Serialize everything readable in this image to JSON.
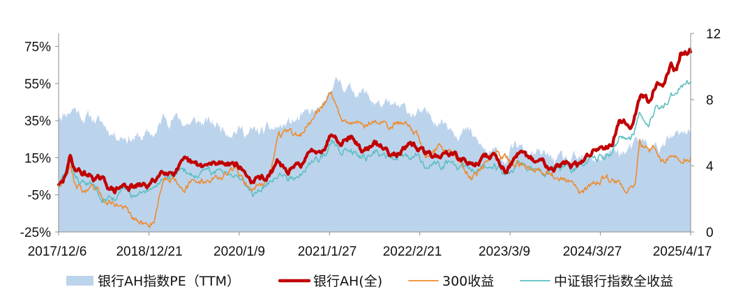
{
  "chart_data": {
    "type": "area",
    "title": "",
    "xlabel": "",
    "ylabel_left": "",
    "ylabel_right": "",
    "x_tick_labels": [
      "2017/12/6",
      "2018/12/21",
      "2020/1/9",
      "2021/1/27",
      "2022/2/21",
      "2023/3/9",
      "2024/3/27",
      "2025/4/17"
    ],
    "x_range": [
      "2017-12-06",
      "2025-05-15"
    ],
    "y_left": {
      "ticks": [
        -25,
        -5,
        15,
        35,
        55,
        75
      ],
      "tick_labels": [
        "-25%",
        "-5%",
        "15%",
        "35%",
        "55%",
        "75%"
      ],
      "lim": [
        -25,
        82
      ],
      "unit": "%"
    },
    "y_right": {
      "ticks": [
        0,
        4,
        8,
        12
      ],
      "tick_labels": [
        "0",
        "4",
        "8",
        "12"
      ],
      "lim": [
        0,
        12
      ]
    },
    "grid": false,
    "legend_position": "bottom",
    "series": [
      {
        "name": "银行AH指数PE（TTM）",
        "axis": "right",
        "kind": "area",
        "color": "#bcd3ec",
        "points": [
          [
            "2017-12-06",
            7.1
          ],
          [
            "2018-01-10",
            7.3
          ],
          [
            "2018-02-10",
            7.6
          ],
          [
            "2018-03-15",
            7.1
          ],
          [
            "2018-05-01",
            6.9
          ],
          [
            "2018-06-15",
            6.5
          ],
          [
            "2018-08-01",
            6.0
          ],
          [
            "2018-09-15",
            5.9
          ],
          [
            "2018-11-15",
            5.7
          ],
          [
            "2018-12-21",
            5.8
          ],
          [
            "2019-02-01",
            6.0
          ],
          [
            "2019-03-01",
            6.9
          ],
          [
            "2019-04-15",
            7.0
          ],
          [
            "2019-06-01",
            6.6
          ],
          [
            "2019-08-01",
            6.6
          ],
          [
            "2019-10-01",
            6.5
          ],
          [
            "2019-12-01",
            6.3
          ],
          [
            "2020-01-09",
            6.3
          ],
          [
            "2020-03-01",
            6.0
          ],
          [
            "2020-05-01",
            6.0
          ],
          [
            "2020-06-01",
            6.1
          ],
          [
            "2020-08-01",
            6.4
          ],
          [
            "2020-09-01",
            6.6
          ],
          [
            "2020-11-01",
            6.9
          ],
          [
            "2020-12-15",
            7.2
          ],
          [
            "2021-01-27",
            7.4
          ],
          [
            "2021-02-20",
            8.9
          ],
          [
            "2021-04-01",
            9.1
          ],
          [
            "2021-05-15",
            8.6
          ],
          [
            "2021-07-01",
            8.5
          ],
          [
            "2021-08-15",
            8.0
          ],
          [
            "2021-10-01",
            7.6
          ],
          [
            "2021-12-01",
            7.4
          ],
          [
            "2022-02-21",
            7.2
          ],
          [
            "2022-04-01",
            6.9
          ],
          [
            "2022-05-01",
            7.0
          ],
          [
            "2022-06-15",
            6.8
          ],
          [
            "2022-08-01",
            6.4
          ],
          [
            "2022-10-01",
            6.0
          ],
          [
            "2022-11-01",
            5.5
          ],
          [
            "2022-12-01",
            5.0
          ],
          [
            "2023-01-01",
            4.7
          ],
          [
            "2023-03-09",
            4.5
          ],
          [
            "2023-05-01",
            5.2
          ],
          [
            "2023-06-01",
            4.8
          ],
          [
            "2023-08-01",
            4.6
          ],
          [
            "2023-10-01",
            4.4
          ],
          [
            "2023-12-01",
            4.2
          ],
          [
            "2024-01-15",
            4.2
          ],
          [
            "2024-03-27",
            4.4
          ],
          [
            "2024-05-01",
            4.6
          ],
          [
            "2024-07-01",
            4.8
          ],
          [
            "2024-09-01",
            4.9
          ],
          [
            "2024-10-15",
            5.4
          ],
          [
            "2024-12-01",
            5.1
          ],
          [
            "2025-01-15",
            5.2
          ],
          [
            "2025-03-01",
            5.7
          ],
          [
            "2025-04-17",
            5.7
          ],
          [
            "2025-05-15",
            6.2
          ]
        ]
      },
      {
        "name": "银行AH(全)",
        "axis": "left",
        "kind": "line",
        "color": "#c00000",
        "points": [
          [
            "2017-12-06",
            0.5
          ],
          [
            "2017-12-25",
            1
          ],
          [
            "2018-01-10",
            8
          ],
          [
            "2018-01-25",
            15
          ],
          [
            "2018-02-10",
            10
          ],
          [
            "2018-03-15",
            7
          ],
          [
            "2018-05-01",
            5
          ],
          [
            "2018-06-15",
            2
          ],
          [
            "2018-08-01",
            -3
          ],
          [
            "2018-09-15",
            0
          ],
          [
            "2018-10-30",
            -1
          ],
          [
            "2018-12-21",
            0
          ],
          [
            "2019-01-20",
            2
          ],
          [
            "2019-03-01",
            9
          ],
          [
            "2019-04-15",
            8
          ],
          [
            "2019-06-01",
            12
          ],
          [
            "2019-08-01",
            10
          ],
          [
            "2019-10-01",
            11
          ],
          [
            "2019-12-01",
            13
          ],
          [
            "2020-01-09",
            12
          ],
          [
            "2020-03-20",
            2
          ],
          [
            "2020-05-01",
            4
          ],
          [
            "2020-06-01",
            5
          ],
          [
            "2020-07-10",
            13
          ],
          [
            "2020-08-15",
            7
          ],
          [
            "2020-10-01",
            10
          ],
          [
            "2020-12-01",
            18
          ],
          [
            "2021-01-27",
            22
          ],
          [
            "2021-02-20",
            29
          ],
          [
            "2021-04-01",
            25
          ],
          [
            "2021-05-15",
            27
          ],
          [
            "2021-07-01",
            19
          ],
          [
            "2021-09-01",
            22
          ],
          [
            "2021-11-01",
            18
          ],
          [
            "2022-01-10",
            20
          ],
          [
            "2022-02-21",
            21
          ],
          [
            "2022-04-01",
            17
          ],
          [
            "2022-06-01",
            16
          ],
          [
            "2022-07-15",
            18
          ],
          [
            "2022-09-01",
            14
          ],
          [
            "2022-10-15",
            11
          ],
          [
            "2022-12-01",
            14
          ],
          [
            "2023-01-15",
            17
          ],
          [
            "2023-03-09",
            9
          ],
          [
            "2023-05-01",
            16
          ],
          [
            "2023-06-15",
            14
          ],
          [
            "2023-08-01",
            13
          ],
          [
            "2023-10-01",
            11
          ],
          [
            "2023-12-01",
            12
          ],
          [
            "2024-01-20",
            10
          ],
          [
            "2024-03-27",
            20
          ],
          [
            "2024-05-01",
            21
          ],
          [
            "2024-06-15",
            25
          ],
          [
            "2024-07-15",
            36
          ],
          [
            "2024-09-01",
            32
          ],
          [
            "2024-10-10",
            48
          ],
          [
            "2024-11-15",
            46
          ],
          [
            "2024-12-15",
            56
          ],
          [
            "2025-01-15",
            56
          ],
          [
            "2025-02-20",
            64
          ],
          [
            "2025-03-15",
            62
          ],
          [
            "2025-04-01",
            71
          ],
          [
            "2025-04-17",
            70
          ],
          [
            "2025-05-15",
            72
          ]
        ]
      },
      {
        "name": "300收益",
        "axis": "left",
        "kind": "line",
        "color": "#ed8b2d",
        "points": [
          [
            "2017-12-06",
            0
          ],
          [
            "2018-01-25",
            10
          ],
          [
            "2018-02-10",
            2
          ],
          [
            "2018-03-15",
            -2
          ],
          [
            "2018-05-01",
            -3
          ],
          [
            "2018-06-15",
            -7
          ],
          [
            "2018-08-01",
            -9
          ],
          [
            "2018-09-15",
            -12
          ],
          [
            "2018-10-30",
            -20
          ],
          [
            "2018-12-21",
            -22
          ],
          [
            "2019-01-20",
            -18
          ],
          [
            "2019-03-01",
            4
          ],
          [
            "2019-04-15",
            5
          ],
          [
            "2019-06-01",
            0
          ],
          [
            "2019-08-01",
            2
          ],
          [
            "2019-10-01",
            4
          ],
          [
            "2019-12-01",
            6
          ],
          [
            "2020-01-09",
            8
          ],
          [
            "2020-03-20",
            -2
          ],
          [
            "2020-05-01",
            2
          ],
          [
            "2020-06-01",
            6
          ],
          [
            "2020-07-10",
            28
          ],
          [
            "2020-08-15",
            27
          ],
          [
            "2020-10-01",
            27
          ],
          [
            "2020-12-01",
            35
          ],
          [
            "2021-01-27",
            46
          ],
          [
            "2021-02-20",
            52
          ],
          [
            "2021-04-01",
            35
          ],
          [
            "2021-05-15",
            37
          ],
          [
            "2021-07-01",
            33
          ],
          [
            "2021-09-01",
            34
          ],
          [
            "2021-11-01",
            32
          ],
          [
            "2022-01-10",
            35
          ],
          [
            "2022-02-21",
            28
          ],
          [
            "2022-04-01",
            15
          ],
          [
            "2022-06-01",
            21
          ],
          [
            "2022-07-15",
            19
          ],
          [
            "2022-09-01",
            12
          ],
          [
            "2022-10-15",
            5
          ],
          [
            "2022-12-01",
            11
          ],
          [
            "2023-01-15",
            16
          ],
          [
            "2023-03-09",
            14
          ],
          [
            "2023-05-01",
            13
          ],
          [
            "2023-06-15",
            10
          ],
          [
            "2023-08-01",
            11
          ],
          [
            "2023-10-01",
            6
          ],
          [
            "2023-12-01",
            2
          ],
          [
            "2024-01-20",
            -5
          ],
          [
            "2024-03-27",
            2
          ],
          [
            "2024-05-01",
            4
          ],
          [
            "2024-06-15",
            3
          ],
          [
            "2024-08-01",
            0
          ],
          [
            "2024-09-18",
            -2
          ],
          [
            "2024-10-08",
            23
          ],
          [
            "2024-11-15",
            18
          ],
          [
            "2024-12-15",
            20
          ],
          [
            "2025-01-15",
            14
          ],
          [
            "2025-02-20",
            17
          ],
          [
            "2025-03-15",
            17
          ],
          [
            "2025-04-07",
            10
          ],
          [
            "2025-04-17",
            14
          ],
          [
            "2025-05-15",
            15
          ]
        ]
      },
      {
        "name": "中证银行指数全收益",
        "axis": "left",
        "kind": "line",
        "color": "#5bbfc0",
        "points": [
          [
            "2017-12-06",
            -1
          ],
          [
            "2018-01-25",
            12
          ],
          [
            "2018-02-10",
            6
          ],
          [
            "2018-03-15",
            2
          ],
          [
            "2018-05-01",
            0
          ],
          [
            "2018-06-15",
            -4
          ],
          [
            "2018-08-01",
            -6
          ],
          [
            "2018-09-15",
            -3
          ],
          [
            "2018-10-30",
            -6
          ],
          [
            "2018-12-21",
            -5
          ],
          [
            "2019-01-20",
            -3
          ],
          [
            "2019-03-01",
            5
          ],
          [
            "2019-04-15",
            5
          ],
          [
            "2019-06-01",
            7
          ],
          [
            "2019-08-01",
            6
          ],
          [
            "2019-10-01",
            7
          ],
          [
            "2019-12-01",
            8
          ],
          [
            "2020-01-09",
            7
          ],
          [
            "2020-03-20",
            -3
          ],
          [
            "2020-05-01",
            0
          ],
          [
            "2020-06-01",
            2
          ],
          [
            "2020-07-10",
            9
          ],
          [
            "2020-08-15",
            4
          ],
          [
            "2020-10-01",
            6
          ],
          [
            "2020-12-01",
            13
          ],
          [
            "2021-01-27",
            17
          ],
          [
            "2021-02-20",
            23
          ],
          [
            "2021-04-01",
            20
          ],
          [
            "2021-05-15",
            22
          ],
          [
            "2021-07-01",
            15
          ],
          [
            "2021-09-01",
            18
          ],
          [
            "2021-11-01",
            14
          ],
          [
            "2022-01-10",
            16
          ],
          [
            "2022-02-21",
            17
          ],
          [
            "2022-04-01",
            12
          ],
          [
            "2022-06-01",
            11
          ],
          [
            "2022-07-15",
            12
          ],
          [
            "2022-09-01",
            9
          ],
          [
            "2022-10-15",
            7
          ],
          [
            "2022-12-01",
            10
          ],
          [
            "2023-01-15",
            12
          ],
          [
            "2023-03-09",
            6
          ],
          [
            "2023-05-01",
            12
          ],
          [
            "2023-06-15",
            10
          ],
          [
            "2023-08-01",
            9
          ],
          [
            "2023-10-01",
            8
          ],
          [
            "2023-12-01",
            9
          ],
          [
            "2024-01-20",
            7
          ],
          [
            "2024-03-27",
            15
          ],
          [
            "2024-05-01",
            16
          ],
          [
            "2024-06-15",
            19
          ],
          [
            "2024-07-15",
            27
          ],
          [
            "2024-09-01",
            23
          ],
          [
            "2024-10-10",
            38
          ],
          [
            "2024-11-15",
            36
          ],
          [
            "2024-12-15",
            42
          ],
          [
            "2025-01-15",
            43
          ],
          [
            "2025-02-20",
            49
          ],
          [
            "2025-03-15",
            48
          ],
          [
            "2025-04-01",
            53
          ],
          [
            "2025-04-17",
            55
          ],
          [
            "2025-05-15",
            56
          ]
        ]
      }
    ]
  }
}
